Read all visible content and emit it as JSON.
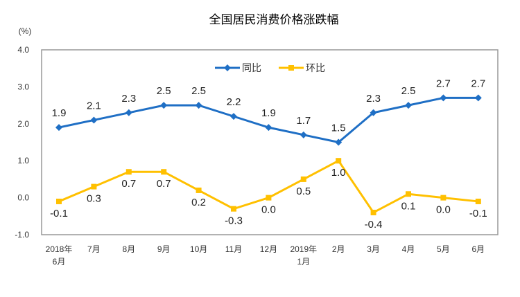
{
  "chart_data": {
    "type": "line",
    "title": "全国居民消费价格涨跌幅",
    "ylabel": "(%)",
    "xlabel": "",
    "ylim": [
      -1.0,
      4.0
    ],
    "yticks": [
      "4.0",
      "3.0",
      "2.0",
      "1.0",
      "0.0",
      "-1.0"
    ],
    "ytick_values": [
      4,
      3,
      2,
      1,
      0,
      -1
    ],
    "grid": false,
    "legend_placement": "top-center",
    "categories": [
      [
        "2018年",
        "6月"
      ],
      [
        "7月"
      ],
      [
        "8月"
      ],
      [
        "9月"
      ],
      [
        "10月"
      ],
      [
        "11月"
      ],
      [
        "12月"
      ],
      [
        "2019年",
        "1月"
      ],
      [
        "2月"
      ],
      [
        "3月"
      ],
      [
        "4月"
      ],
      [
        "5月"
      ],
      [
        "6月"
      ]
    ],
    "series": [
      {
        "name": "同比",
        "color": "#1F6FC5",
        "marker": "diamond",
        "values": [
          1.9,
          2.1,
          2.3,
          2.5,
          2.5,
          2.2,
          1.9,
          1.7,
          1.5,
          2.3,
          2.5,
          2.7,
          2.7
        ],
        "labels": [
          "1.9",
          "2.1",
          "2.3",
          "2.5",
          "2.5",
          "2.2",
          "1.9",
          "1.7",
          "1.5",
          "2.3",
          "2.5",
          "2.7",
          "2.7"
        ]
      },
      {
        "name": "环比",
        "color": "#FFC000",
        "marker": "square",
        "values": [
          -0.1,
          0.3,
          0.7,
          0.7,
          0.2,
          -0.3,
          0.0,
          0.5,
          1.0,
          -0.4,
          0.1,
          0.0,
          -0.1
        ],
        "labels": [
          "-0.1",
          "0.3",
          "0.7",
          "0.7",
          "0.2",
          "-0.3",
          "0.0",
          "0.5",
          "1.0",
          "-0.4",
          "0.1",
          "0.0",
          "-0.1"
        ]
      }
    ]
  }
}
